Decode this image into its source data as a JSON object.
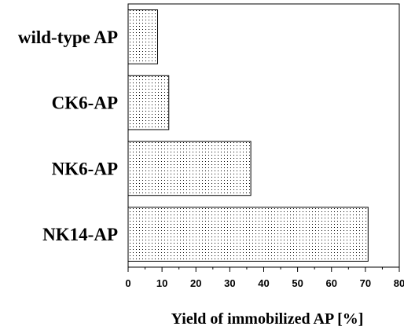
{
  "chart_data": {
    "type": "bar",
    "orientation": "horizontal",
    "categories": [
      "wild-type AP",
      "CK6-AP",
      "NK6-AP",
      "NK14-AP"
    ],
    "values": [
      8.7,
      12,
      36.2,
      70.8
    ],
    "xlabel": "Yield of immobilized AP [%]",
    "ylabel": "",
    "xlim": [
      0,
      80
    ],
    "xticks": [
      "0",
      "10",
      "20",
      "30",
      "40",
      "50",
      "60",
      "70",
      "80"
    ],
    "grid": false,
    "bar_fill": "dotted pattern",
    "colors": {
      "bar_fill": "#ffffff",
      "bar_dots": "#000000",
      "frame": "#000000"
    }
  }
}
